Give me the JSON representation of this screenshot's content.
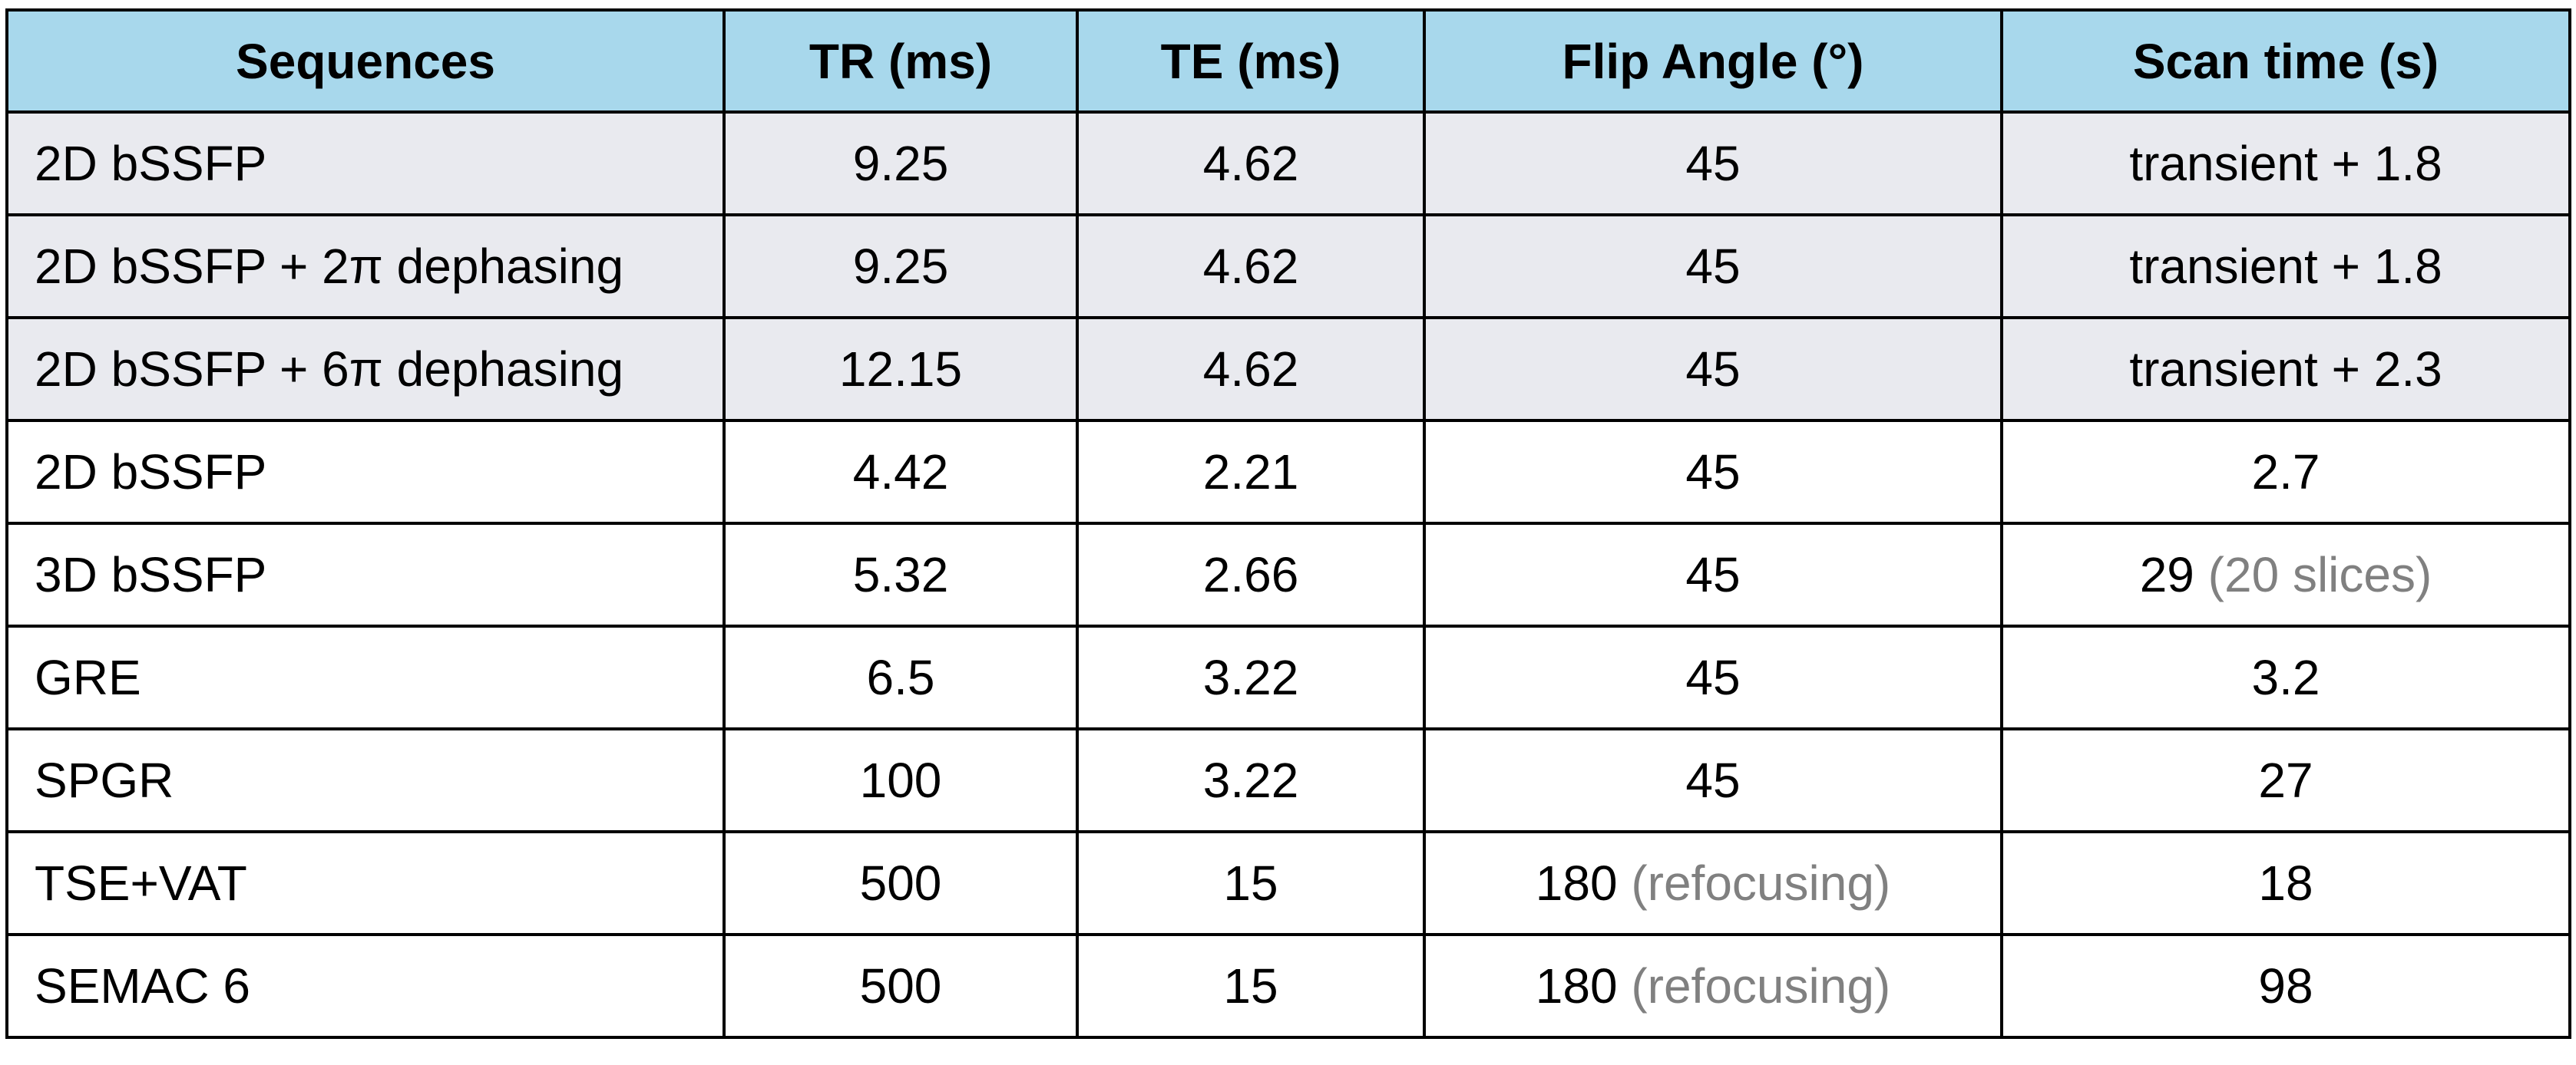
{
  "table": {
    "headers": [
      "Sequences",
      "TR (ms)",
      "TE (ms)",
      "Flip Angle (°)",
      "Scan time (s)"
    ],
    "rows": [
      {
        "sequence": "2D bSSFP",
        "tr": "9.25",
        "te": "4.62",
        "flip": "45",
        "flip_note": "",
        "scan": "transient + 1.8",
        "scan_note": "",
        "shaded": true
      },
      {
        "sequence": "2D bSSFP + 2π dephasing",
        "tr": "9.25",
        "te": "4.62",
        "flip": "45",
        "flip_note": "",
        "scan": "transient + 1.8",
        "scan_note": "",
        "shaded": true
      },
      {
        "sequence": "2D bSSFP + 6π dephasing",
        "tr": "12.15",
        "te": "4.62",
        "flip": "45",
        "flip_note": "",
        "scan": "transient + 2.3",
        "scan_note": "",
        "shaded": true
      },
      {
        "sequence": "2D bSSFP",
        "tr": "4.42",
        "te": "2.21",
        "flip": "45",
        "flip_note": "",
        "scan": "2.7",
        "scan_note": "",
        "shaded": false
      },
      {
        "sequence": "3D bSSFP",
        "tr": "5.32",
        "te": "2.66",
        "flip": "45",
        "flip_note": "",
        "scan": "29",
        "scan_note": "(20 slices)",
        "shaded": false
      },
      {
        "sequence": "GRE",
        "tr": "6.5",
        "te": "3.22",
        "flip": "45",
        "flip_note": "",
        "scan": "3.2",
        "scan_note": "",
        "shaded": false
      },
      {
        "sequence": "SPGR",
        "tr": "100",
        "te": "3.22",
        "flip": "45",
        "flip_note": "",
        "scan": "27",
        "scan_note": "",
        "shaded": false
      },
      {
        "sequence": "TSE+VAT",
        "tr": "500",
        "te": "15",
        "flip": "180",
        "flip_note": "(refocusing)",
        "scan": "18",
        "scan_note": "",
        "shaded": false
      },
      {
        "sequence": "SEMAC 6",
        "tr": "500",
        "te": "15",
        "flip": "180",
        "flip_note": "(refocusing)",
        "scan": "98",
        "scan_note": "",
        "shaded": false
      }
    ]
  },
  "colors": {
    "header_bg": "#a8d8ec",
    "shaded_row_bg": "#e9eaef",
    "note_text": "#808080",
    "border": "#000000"
  }
}
